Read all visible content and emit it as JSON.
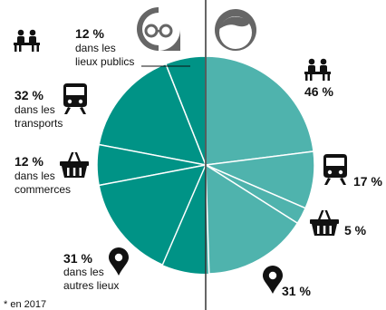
{
  "chart_data": {
    "type": "pie",
    "title": "",
    "footnote": "* en 2017",
    "colors": {
      "women": "#009386",
      "men": "#4fb3ad",
      "separator": "#ffffff",
      "divider": "#333333",
      "avatar": "#555555"
    },
    "avatars": [
      {
        "name": "woman",
        "icon": "woman-glasses-icon"
      },
      {
        "name": "man",
        "icon": "man-icon"
      }
    ],
    "halves": [
      {
        "name": "women",
        "side": "left",
        "slices": [
          {
            "key": "public",
            "value": 12,
            "pct_label": "12 %",
            "lines": [
              "dans les",
              "lieux publics"
            ],
            "icon": "bench-couple-icon"
          },
          {
            "key": "transport",
            "value": 32,
            "pct_label": "32 %",
            "lines": [
              "dans les",
              "transports"
            ],
            "icon": "train-icon"
          },
          {
            "key": "shops",
            "value": 12,
            "pct_label": "12 %",
            "lines": [
              "dans les",
              "commerces"
            ],
            "icon": "basket-icon"
          },
          {
            "key": "other",
            "value": 31,
            "pct_label": "31 %",
            "lines": [
              "dans les",
              "autres lieux"
            ],
            "icon": "map-pin-icon"
          }
        ],
        "remainder": 13
      },
      {
        "name": "men",
        "side": "right",
        "slices": [
          {
            "key": "public",
            "value": 46,
            "pct_label": "46 %",
            "lines": [],
            "icon": "bench-couple-icon"
          },
          {
            "key": "transport",
            "value": 17,
            "pct_label": "17 %",
            "lines": [],
            "icon": "train-icon"
          },
          {
            "key": "shops",
            "value": 5,
            "pct_label": "5 %",
            "lines": [],
            "icon": "basket-icon"
          },
          {
            "key": "other",
            "value": 31,
            "pct_label": "31 %",
            "lines": [],
            "icon": "map-pin-icon"
          }
        ],
        "remainder": 1
      }
    ]
  }
}
